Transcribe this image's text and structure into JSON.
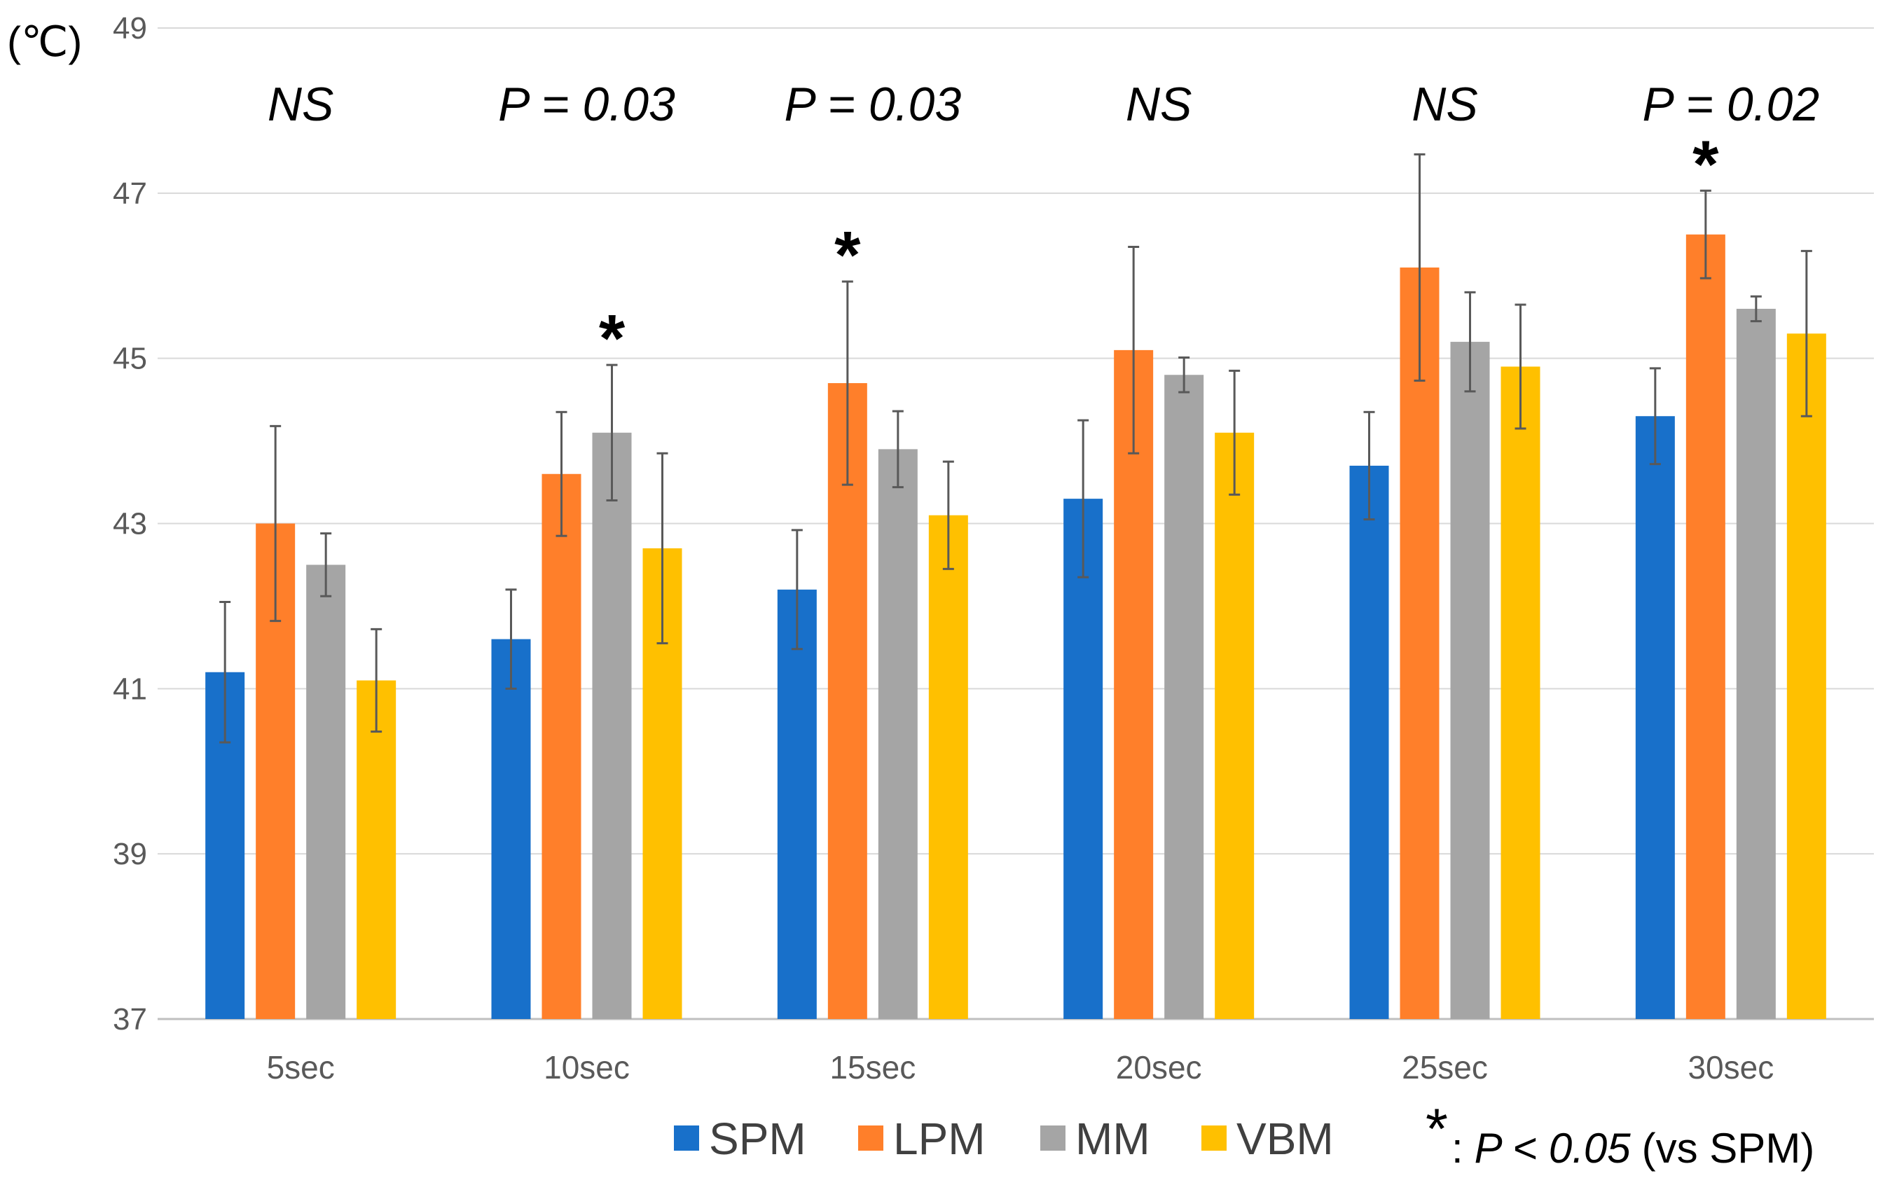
{
  "chart_data": {
    "type": "bar",
    "title": "",
    "unit_label": "(℃)",
    "xlabel": "",
    "ylabel": "(℃)",
    "ylim": [
      37,
      49
    ],
    "yticks": [
      "37",
      "39",
      "41",
      "43",
      "45",
      "47",
      "49"
    ],
    "grid": true,
    "legend_position": "bottom",
    "categories": [
      "5sec",
      "10sec",
      "15sec",
      "20sec",
      "25sec",
      "30sec"
    ],
    "series": [
      {
        "name": "SPM",
        "color": "#1870CA",
        "values": [
          41.2,
          41.6,
          42.2,
          43.3,
          43.7,
          44.3
        ],
        "errors": [
          0.85,
          0.6,
          0.72,
          0.95,
          0.65,
          0.58
        ]
      },
      {
        "name": "LPM",
        "color": "#FF7F2A",
        "values": [
          43.0,
          43.6,
          44.7,
          45.1,
          46.1,
          46.5
        ],
        "errors": [
          1.18,
          0.75,
          1.23,
          1.25,
          1.37,
          0.53
        ]
      },
      {
        "name": "MM",
        "color": "#A5A5A5",
        "values": [
          42.5,
          44.1,
          43.9,
          44.8,
          45.2,
          45.6
        ],
        "errors": [
          0.38,
          0.82,
          0.46,
          0.21,
          0.6,
          0.15
        ]
      },
      {
        "name": "VBM",
        "color": "#FFC000",
        "values": [
          41.1,
          42.7,
          43.1,
          44.1,
          44.9,
          45.3
        ],
        "errors": [
          0.62,
          1.15,
          0.65,
          0.75,
          0.75,
          1.0
        ]
      }
    ],
    "annotations": {
      "group_labels": [
        "NS",
        "P = 0.03",
        "P = 0.03",
        "NS",
        "NS",
        "P = 0.02"
      ],
      "stars": [
        {
          "category_index": 1,
          "series_index": 2,
          "text": "*"
        },
        {
          "category_index": 2,
          "series_index": 1,
          "text": "*"
        },
        {
          "category_index": 5,
          "series_index": 1,
          "text": "*"
        }
      ],
      "note": {
        "star": "*",
        "colon": ":",
        "italic": "P < 0.05",
        "rest": "(vs SPM)"
      }
    }
  }
}
